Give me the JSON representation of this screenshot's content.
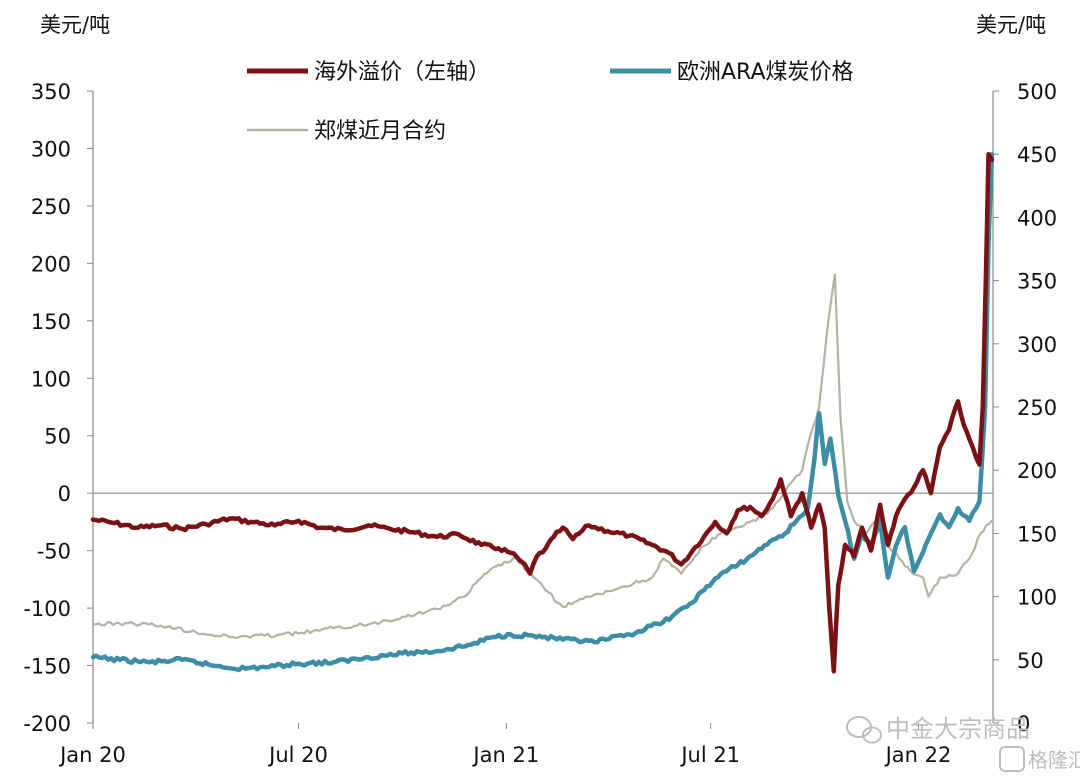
{
  "chart_data": {
    "type": "line",
    "title": "",
    "left_axis": {
      "unit": "美元/吨",
      "ticks": [
        350,
        300,
        250,
        200,
        150,
        100,
        50,
        0,
        -50,
        -100,
        -150,
        -200
      ],
      "ylim": [
        -200,
        350
      ]
    },
    "right_axis": {
      "unit": "美元/吨",
      "ticks": [
        500,
        450,
        400,
        350,
        300,
        250,
        200,
        150,
        100,
        50,
        0
      ],
      "ylim": [
        0,
        500
      ]
    },
    "x_ticks": [
      "Jan 20",
      "Jul 20",
      "Jan 21",
      "Jul 21",
      "Jan 22"
    ],
    "x_tick_positions": [
      "2020-01-01",
      "2020-07-01",
      "2021-01-01",
      "2021-07-01",
      "2022-01-01"
    ],
    "xlim": [
      "2020-01-01",
      "2022-03-08"
    ],
    "grid": false,
    "legend_position": "top",
    "series": [
      {
        "name": "海外溢价（左轴）",
        "axis": "left",
        "color": "#7a1215",
        "points": [
          [
            "2020-01-01",
            -23
          ],
          [
            "2020-01-20",
            -26
          ],
          [
            "2020-02-10",
            -30
          ],
          [
            "2020-03-01",
            -28
          ],
          [
            "2020-03-20",
            -31
          ],
          [
            "2020-04-10",
            -27
          ],
          [
            "2020-05-01",
            -22
          ],
          [
            "2020-05-20",
            -25
          ],
          [
            "2020-06-10",
            -28
          ],
          [
            "2020-07-01",
            -24
          ],
          [
            "2020-07-20",
            -30
          ],
          [
            "2020-08-10",
            -32
          ],
          [
            "2020-09-01",
            -28
          ],
          [
            "2020-09-20",
            -31
          ],
          [
            "2020-10-10",
            -34
          ],
          [
            "2020-11-01",
            -38
          ],
          [
            "2020-11-20",
            -36
          ],
          [
            "2020-12-10",
            -45
          ],
          [
            "2020-12-25",
            -48
          ],
          [
            "2021-01-05",
            -52
          ],
          [
            "2021-01-15",
            -60
          ],
          [
            "2021-01-22",
            -70
          ],
          [
            "2021-01-28",
            -55
          ],
          [
            "2021-02-05",
            -48
          ],
          [
            "2021-02-12",
            -38
          ],
          [
            "2021-02-20",
            -30
          ],
          [
            "2021-03-01",
            -40
          ],
          [
            "2021-03-15",
            -28
          ],
          [
            "2021-04-01",
            -33
          ],
          [
            "2021-04-20",
            -37
          ],
          [
            "2021-05-10",
            -45
          ],
          [
            "2021-05-25",
            -52
          ],
          [
            "2021-06-05",
            -62
          ],
          [
            "2021-06-15",
            -50
          ],
          [
            "2021-06-25",
            -38
          ],
          [
            "2021-07-05",
            -25
          ],
          [
            "2021-07-15",
            -35
          ],
          [
            "2021-07-25",
            -15
          ],
          [
            "2021-08-05",
            -12
          ],
          [
            "2021-08-15",
            -20
          ],
          [
            "2021-08-25",
            -5
          ],
          [
            "2021-09-01",
            12
          ],
          [
            "2021-09-10",
            -20
          ],
          [
            "2021-09-20",
            0
          ],
          [
            "2021-09-28",
            -30
          ],
          [
            "2021-10-05",
            -10
          ],
          [
            "2021-10-10",
            -30
          ],
          [
            "2021-10-14",
            -100
          ],
          [
            "2021-10-18",
            -155
          ],
          [
            "2021-10-22",
            -80
          ],
          [
            "2021-10-28",
            -45
          ],
          [
            "2021-11-05",
            -55
          ],
          [
            "2021-11-12",
            -30
          ],
          [
            "2021-11-20",
            -50
          ],
          [
            "2021-11-28",
            -10
          ],
          [
            "2021-12-05",
            -45
          ],
          [
            "2021-12-12",
            -20
          ],
          [
            "2021-12-20",
            -5
          ],
          [
            "2021-12-28",
            5
          ],
          [
            "2022-01-05",
            20
          ],
          [
            "2022-01-12",
            0
          ],
          [
            "2022-01-20",
            40
          ],
          [
            "2022-01-28",
            55
          ],
          [
            "2022-02-05",
            80
          ],
          [
            "2022-02-10",
            60
          ],
          [
            "2022-02-18",
            40
          ],
          [
            "2022-02-24",
            25
          ],
          [
            "2022-02-27",
            75
          ],
          [
            "2022-03-02",
            200
          ],
          [
            "2022-03-04",
            295
          ],
          [
            "2022-03-07",
            290
          ]
        ]
      },
      {
        "name": "欧洲ARA煤炭价格",
        "axis": "right",
        "color": "#3d8da6",
        "points": [
          [
            "2020-01-01",
            52
          ],
          [
            "2020-01-25",
            50
          ],
          [
            "2020-02-20",
            48
          ],
          [
            "2020-03-20",
            50
          ],
          [
            "2020-04-20",
            45
          ],
          [
            "2020-05-15",
            43
          ],
          [
            "2020-06-10",
            45
          ],
          [
            "2020-07-01",
            47
          ],
          [
            "2020-08-01",
            48
          ],
          [
            "2020-09-01",
            52
          ],
          [
            "2020-10-01",
            55
          ],
          [
            "2020-11-01",
            57
          ],
          [
            "2020-12-01",
            62
          ],
          [
            "2020-12-20",
            68
          ],
          [
            "2021-01-05",
            70
          ],
          [
            "2021-01-25",
            69
          ],
          [
            "2021-02-20",
            66
          ],
          [
            "2021-03-20",
            64
          ],
          [
            "2021-04-20",
            70
          ],
          [
            "2021-05-20",
            80
          ],
          [
            "2021-06-10",
            92
          ],
          [
            "2021-06-25",
            105
          ],
          [
            "2021-07-10",
            118
          ],
          [
            "2021-07-25",
            125
          ],
          [
            "2021-08-10",
            135
          ],
          [
            "2021-08-25",
            145
          ],
          [
            "2021-09-05",
            150
          ],
          [
            "2021-09-15",
            160
          ],
          [
            "2021-09-25",
            170
          ],
          [
            "2021-10-01",
            210
          ],
          [
            "2021-10-05",
            245
          ],
          [
            "2021-10-10",
            205
          ],
          [
            "2021-10-15",
            225
          ],
          [
            "2021-10-22",
            180
          ],
          [
            "2021-10-28",
            160
          ],
          [
            "2021-11-05",
            130
          ],
          [
            "2021-11-12",
            150
          ],
          [
            "2021-11-20",
            140
          ],
          [
            "2021-11-28",
            160
          ],
          [
            "2021-12-05",
            115
          ],
          [
            "2021-12-12",
            140
          ],
          [
            "2021-12-20",
            155
          ],
          [
            "2021-12-28",
            120
          ],
          [
            "2022-01-05",
            135
          ],
          [
            "2022-01-12",
            150
          ],
          [
            "2022-01-20",
            165
          ],
          [
            "2022-01-28",
            155
          ],
          [
            "2022-02-05",
            170
          ],
          [
            "2022-02-15",
            160
          ],
          [
            "2022-02-24",
            175
          ],
          [
            "2022-03-01",
            250
          ],
          [
            "2022-03-04",
            380
          ],
          [
            "2022-03-07",
            450
          ]
        ]
      },
      {
        "name": "郑煤近月合约",
        "axis": "right",
        "color": "#b5b1a5",
        "points": [
          [
            "2020-01-01",
            78
          ],
          [
            "2020-02-01",
            79
          ],
          [
            "2020-03-01",
            77
          ],
          [
            "2020-04-01",
            72
          ],
          [
            "2020-05-01",
            68
          ],
          [
            "2020-06-01",
            69
          ],
          [
            "2020-07-01",
            71
          ],
          [
            "2020-08-01",
            75
          ],
          [
            "2020-09-01",
            78
          ],
          [
            "2020-10-01",
            84
          ],
          [
            "2020-11-01",
            90
          ],
          [
            "2020-11-25",
            100
          ],
          [
            "2020-12-10",
            115
          ],
          [
            "2020-12-25",
            125
          ],
          [
            "2021-01-10",
            130
          ],
          [
            "2021-01-20",
            120
          ],
          [
            "2021-02-05",
            105
          ],
          [
            "2021-02-20",
            92
          ],
          [
            "2021-03-10",
            98
          ],
          [
            "2021-03-25",
            102
          ],
          [
            "2021-04-15",
            108
          ],
          [
            "2021-05-10",
            115
          ],
          [
            "2021-05-20",
            130
          ],
          [
            "2021-06-05",
            118
          ],
          [
            "2021-06-25",
            140
          ],
          [
            "2021-07-10",
            150
          ],
          [
            "2021-07-25",
            155
          ],
          [
            "2021-08-10",
            160
          ],
          [
            "2021-08-25",
            170
          ],
          [
            "2021-09-10",
            190
          ],
          [
            "2021-09-20",
            200
          ],
          [
            "2021-09-28",
            230
          ],
          [
            "2021-10-05",
            250
          ],
          [
            "2021-10-12",
            310
          ],
          [
            "2021-10-19",
            355
          ],
          [
            "2021-10-24",
            240
          ],
          [
            "2021-10-30",
            175
          ],
          [
            "2021-11-05",
            160
          ],
          [
            "2021-11-15",
            150
          ],
          [
            "2021-11-25",
            160
          ],
          [
            "2021-12-05",
            140
          ],
          [
            "2021-12-15",
            130
          ],
          [
            "2021-12-25",
            120
          ],
          [
            "2022-01-05",
            115
          ],
          [
            "2022-01-10",
            100
          ],
          [
            "2022-01-20",
            115
          ],
          [
            "2022-02-05",
            118
          ],
          [
            "2022-02-15",
            130
          ],
          [
            "2022-02-25",
            150
          ],
          [
            "2022-03-07",
            160
          ]
        ]
      }
    ]
  },
  "watermark": {
    "wechat": "中金大宗商品",
    "brand": "格隆汇"
  }
}
